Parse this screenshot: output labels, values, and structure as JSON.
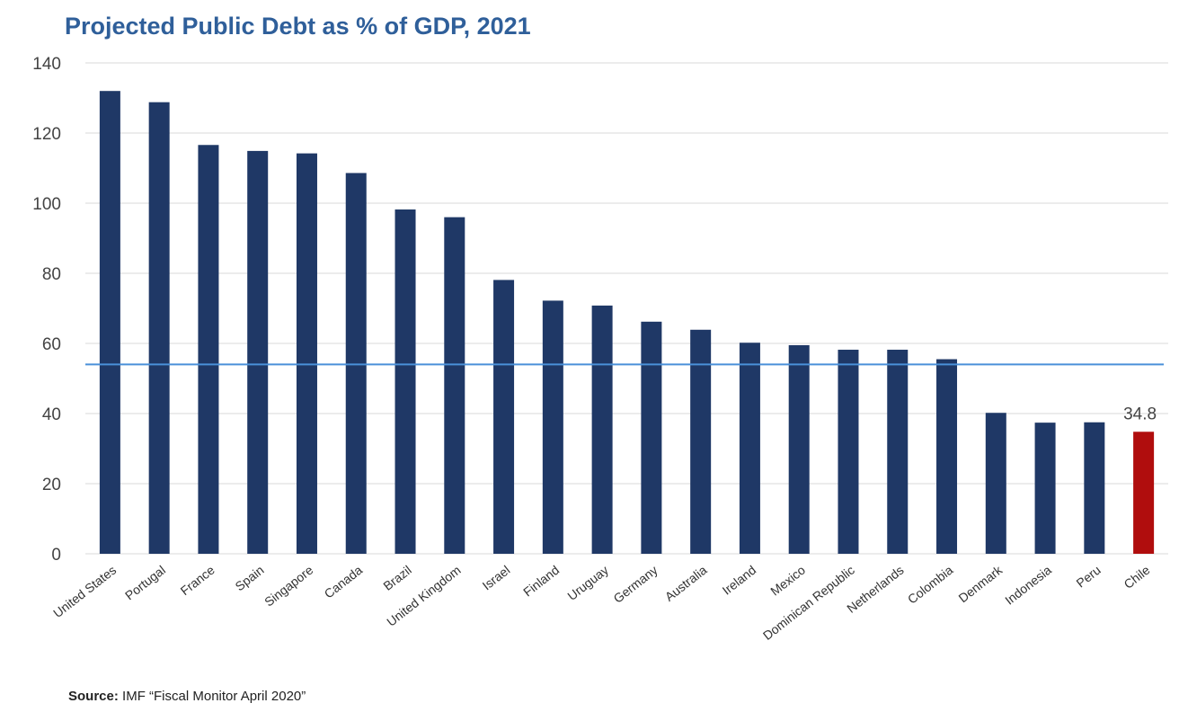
{
  "chart_data": {
    "type": "bar",
    "title": "Projected Public Debt as % of GDP, 2021",
    "xlabel": "",
    "ylabel": "",
    "ylim": [
      0,
      140
    ],
    "yticks": [
      0,
      20,
      40,
      60,
      80,
      100,
      120,
      140
    ],
    "categories": [
      "United States",
      "Portugal",
      "France",
      "Spain",
      "Singapore",
      "Canada",
      "Brazil",
      "United Kingdom",
      "Israel",
      "Finland",
      "Uruguay",
      "Germany",
      "Australia",
      "Ireland",
      "Mexico",
      "Dominican Republic",
      "Netherlands",
      "Colombia",
      "Denmark",
      "Indonesia",
      "Peru",
      "Chile"
    ],
    "values": [
      132.0,
      128.8,
      116.6,
      114.9,
      114.2,
      108.6,
      98.2,
      96.0,
      78.1,
      72.2,
      70.8,
      66.2,
      63.9,
      60.2,
      59.5,
      58.2,
      58.2,
      55.5,
      40.2,
      37.4,
      37.5,
      34.8
    ],
    "reference_line": 54.0,
    "highlight_index": 21,
    "data_labels": [
      {
        "index": 21,
        "text": "34.8"
      }
    ],
    "colors": {
      "bar": "#1f3866",
      "highlight": "#b00d0d",
      "reference_line": "#4a90d9",
      "title": "#2f5f9a",
      "grid": "#d9d9d9"
    },
    "grid": true,
    "legend": "none"
  },
  "source": {
    "label": "Source:",
    "text": " IMF “Fiscal Monitor April 2020”"
  }
}
